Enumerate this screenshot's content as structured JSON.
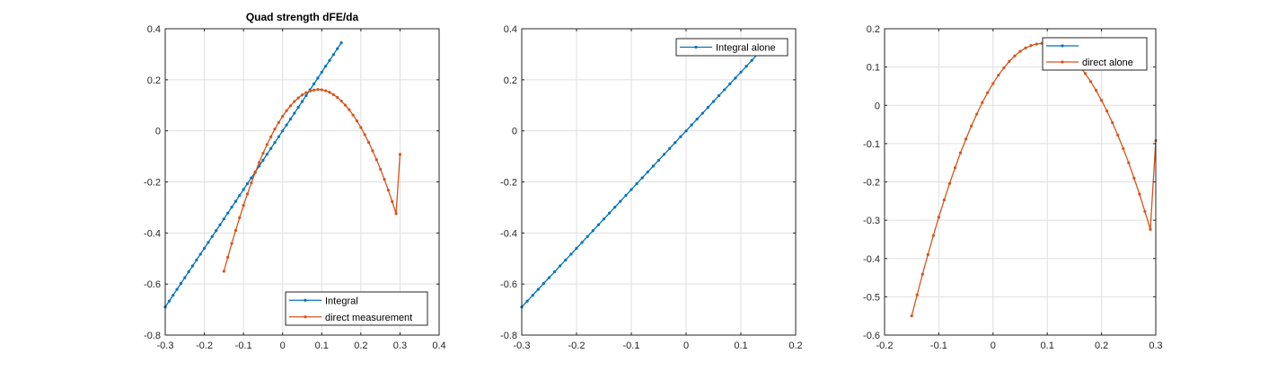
{
  "chart_data": [
    {
      "type": "line",
      "title": "Quad strength dFE/da",
      "xlabel": "",
      "ylabel": "",
      "xlim": [
        -0.3,
        0.4
      ],
      "ylim": [
        -0.8,
        0.4
      ],
      "xticks": [
        -0.3,
        -0.2,
        -0.1,
        0,
        0.1,
        0.2,
        0.3,
        0.4
      ],
      "yticks": [
        -0.8,
        -0.6,
        -0.4,
        -0.2,
        0,
        0.2,
        0.4
      ],
      "xtick_labels": [
        "-0.3",
        "-0.2",
        "-0.1",
        "0",
        "0.1",
        "0.2",
        "0.3",
        "0.4"
      ],
      "ytick_labels": [
        "-0.8",
        "-0.6",
        "-0.4",
        "-0.2",
        "0",
        "0.2",
        "0.4"
      ],
      "grid": true,
      "legend_position": "bottom-right",
      "series": [
        {
          "name": "Integral",
          "color": "#0072BD",
          "x": [
            -0.3,
            -0.29,
            -0.28,
            -0.27,
            -0.26,
            -0.25,
            -0.24,
            -0.23,
            -0.22,
            -0.21,
            -0.2,
            -0.19,
            -0.18,
            -0.17,
            -0.16,
            -0.15,
            -0.14,
            -0.13,
            -0.12,
            -0.11,
            -0.1,
            -0.09,
            -0.08,
            -0.07,
            -0.06,
            -0.05,
            -0.04,
            -0.03,
            -0.02,
            -0.01,
            0,
            0.01,
            0.02,
            0.03,
            0.04,
            0.05,
            0.06,
            0.07,
            0.08,
            0.09,
            0.1,
            0.11,
            0.12,
            0.13,
            0.14,
            0.15
          ],
          "y": [
            -0.69,
            -0.667,
            -0.644,
            -0.621,
            -0.598,
            -0.575,
            -0.552,
            -0.529,
            -0.506,
            -0.483,
            -0.46,
            -0.437,
            -0.414,
            -0.391,
            -0.368,
            -0.345,
            -0.322,
            -0.299,
            -0.276,
            -0.253,
            -0.23,
            -0.207,
            -0.184,
            -0.161,
            -0.138,
            -0.115,
            -0.092,
            -0.069,
            -0.046,
            -0.023,
            0,
            0.023,
            0.046,
            0.069,
            0.092,
            0.115,
            0.138,
            0.161,
            0.184,
            0.207,
            0.23,
            0.253,
            0.276,
            0.299,
            0.322,
            0.345
          ]
        },
        {
          "name": "direct measurement",
          "color": "#D95319",
          "x": [
            -0.15,
            -0.14,
            -0.13,
            -0.12,
            -0.11,
            -0.1,
            -0.09,
            -0.08,
            -0.07,
            -0.06,
            -0.05,
            -0.04,
            -0.03,
            -0.02,
            -0.01,
            0,
            0.01,
            0.02,
            0.03,
            0.04,
            0.05,
            0.06,
            0.07,
            0.08,
            0.09,
            0.1,
            0.11,
            0.12,
            0.13,
            0.14,
            0.15,
            0.16,
            0.17,
            0.18,
            0.19,
            0.2,
            0.21,
            0.22,
            0.23,
            0.24,
            0.25,
            0.26,
            0.27,
            0.28,
            0.29,
            0.3
          ],
          "y": [
            -0.55,
            -0.495,
            -0.441,
            -0.39,
            -0.34,
            -0.292,
            -0.247,
            -0.204,
            -0.163,
            -0.124,
            -0.088,
            -0.054,
            -0.023,
            0.007,
            0.033,
            0.057,
            0.079,
            0.098,
            0.115,
            0.129,
            0.141,
            0.15,
            0.156,
            0.16,
            0.162,
            0.161,
            0.157,
            0.151,
            0.142,
            0.131,
            0.117,
            0.101,
            0.083,
            0.062,
            0.039,
            0.013,
            -0.015,
            -0.045,
            -0.078,
            -0.113,
            -0.15,
            -0.19,
            -0.232,
            -0.277,
            -0.324,
            -0.092
          ]
        }
      ]
    },
    {
      "type": "line",
      "title": "",
      "xlabel": "",
      "ylabel": "",
      "xlim": [
        -0.3,
        0.2
      ],
      "ylim": [
        -0.8,
        0.4
      ],
      "xticks": [
        -0.3,
        -0.2,
        -0.1,
        0,
        0.1,
        0.2
      ],
      "yticks": [
        -0.8,
        -0.6,
        -0.4,
        -0.2,
        0,
        0.2,
        0.4
      ],
      "xtick_labels": [
        "-0.3",
        "-0.2",
        "-0.1",
        "0",
        "0.1",
        "0.2"
      ],
      "ytick_labels": [
        "-0.8",
        "-0.6",
        "-0.4",
        "-0.2",
        "0",
        "0.2",
        "0.4"
      ],
      "grid": true,
      "legend_position": "top-right",
      "series": [
        {
          "name": "Integral alone",
          "color": "#0072BD",
          "x": [
            -0.3,
            -0.29,
            -0.28,
            -0.27,
            -0.26,
            -0.25,
            -0.24,
            -0.23,
            -0.22,
            -0.21,
            -0.2,
            -0.19,
            -0.18,
            -0.17,
            -0.16,
            -0.15,
            -0.14,
            -0.13,
            -0.12,
            -0.11,
            -0.1,
            -0.09,
            -0.08,
            -0.07,
            -0.06,
            -0.05,
            -0.04,
            -0.03,
            -0.02,
            -0.01,
            0,
            0.01,
            0.02,
            0.03,
            0.04,
            0.05,
            0.06,
            0.07,
            0.08,
            0.09,
            0.1,
            0.11,
            0.12,
            0.13,
            0.14,
            0.15
          ],
          "y": [
            -0.69,
            -0.667,
            -0.644,
            -0.621,
            -0.598,
            -0.575,
            -0.552,
            -0.529,
            -0.506,
            -0.483,
            -0.46,
            -0.437,
            -0.414,
            -0.391,
            -0.368,
            -0.345,
            -0.322,
            -0.299,
            -0.276,
            -0.253,
            -0.23,
            -0.207,
            -0.184,
            -0.161,
            -0.138,
            -0.115,
            -0.092,
            -0.069,
            -0.046,
            -0.023,
            0,
            0.023,
            0.046,
            0.069,
            0.092,
            0.115,
            0.138,
            0.161,
            0.184,
            0.207,
            0.23,
            0.253,
            0.276,
            0.299,
            0.322,
            0.345
          ]
        }
      ]
    },
    {
      "type": "line",
      "title": "",
      "xlabel": "",
      "ylabel": "",
      "xlim": [
        -0.2,
        0.3
      ],
      "ylim": [
        -0.6,
        0.2
      ],
      "xticks": [
        -0.2,
        -0.1,
        0,
        0.1,
        0.2,
        0.3
      ],
      "yticks": [
        -0.6,
        -0.5,
        -0.4,
        -0.3,
        -0.2,
        -0.1,
        0,
        0.1,
        0.2
      ],
      "xtick_labels": [
        "-0.2",
        "-0.1",
        "0",
        "0.1",
        "0.2",
        "0.3"
      ],
      "ytick_labels": [
        "-0.6",
        "-0.5",
        "-0.4",
        "-0.3",
        "-0.2",
        "-0.1",
        "0",
        "0.1",
        "0.2"
      ],
      "grid": true,
      "legend_position": "top-right",
      "series": [
        {
          "name": "",
          "color": "#0072BD",
          "x": [],
          "y": []
        },
        {
          "name": "direct alone",
          "color": "#D95319",
          "x": [
            -0.15,
            -0.14,
            -0.13,
            -0.12,
            -0.11,
            -0.1,
            -0.09,
            -0.08,
            -0.07,
            -0.06,
            -0.05,
            -0.04,
            -0.03,
            -0.02,
            -0.01,
            0,
            0.01,
            0.02,
            0.03,
            0.04,
            0.05,
            0.06,
            0.07,
            0.08,
            0.09,
            0.1,
            0.11,
            0.12,
            0.13,
            0.14,
            0.15,
            0.16,
            0.17,
            0.18,
            0.19,
            0.2,
            0.21,
            0.22,
            0.23,
            0.24,
            0.25,
            0.26,
            0.27,
            0.28,
            0.29,
            0.3
          ],
          "y": [
            -0.55,
            -0.495,
            -0.441,
            -0.39,
            -0.34,
            -0.292,
            -0.247,
            -0.204,
            -0.163,
            -0.124,
            -0.088,
            -0.054,
            -0.023,
            0.007,
            0.033,
            0.057,
            0.079,
            0.098,
            0.115,
            0.129,
            0.141,
            0.15,
            0.156,
            0.16,
            0.162,
            0.161,
            0.157,
            0.151,
            0.142,
            0.131,
            0.117,
            0.101,
            0.083,
            0.062,
            0.039,
            0.013,
            -0.015,
            -0.045,
            -0.078,
            -0.113,
            -0.15,
            -0.19,
            -0.232,
            -0.277,
            -0.324,
            -0.092
          ]
        }
      ]
    }
  ]
}
